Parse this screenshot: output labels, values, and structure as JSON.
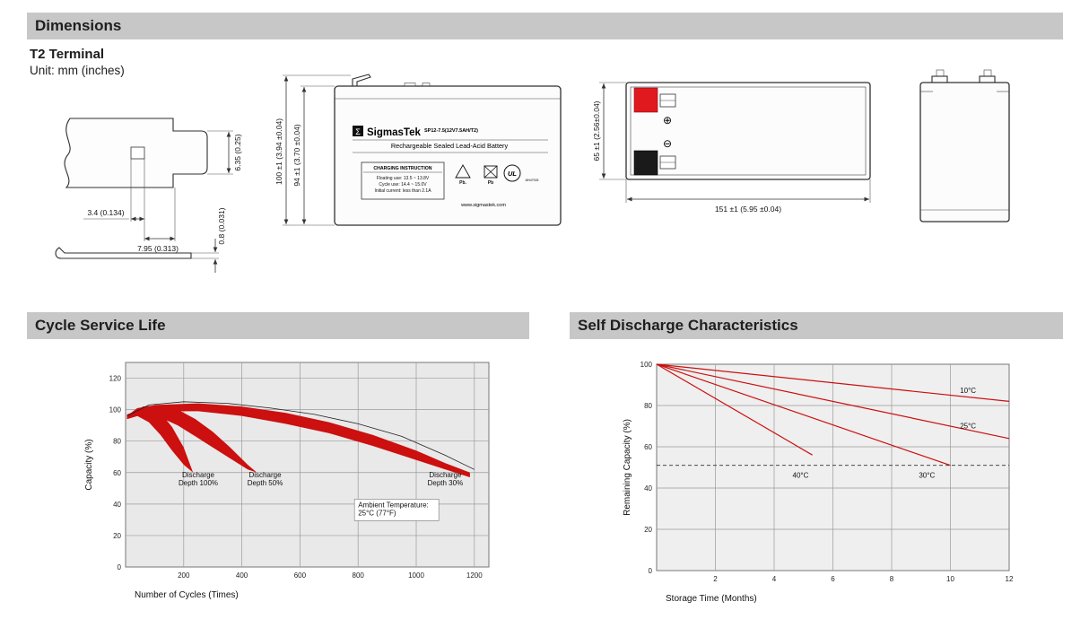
{
  "header": {
    "dimensions_title": "Dimensions"
  },
  "subhead": {
    "terminal_title": "T2 Terminal",
    "unit_label": "Unit: mm (inches)"
  },
  "terminal_drawing": {
    "dim_hole_width": "3.4 (0.134)",
    "dim_tab_offset": "7.95 (0.313)",
    "dim_blade_width": "6.35 (0.25)",
    "dim_thickness": "0.8 (0.031)"
  },
  "front_view": {
    "dim_outer": "100 ±1 (3.94 ±0.04)",
    "dim_inner": "94 ±1 (3.70 ±0.04)",
    "brand_sigma": "Σ",
    "brand": "SigmasTek",
    "model": "SP12-7.5(12V7.5AH/T2)",
    "battery_type": "Rechargeable Sealed Lead-Acid Battery",
    "charging_title": "CHARGING INSTRUCTION",
    "charging_floating": "Floating use: 13.5 ~ 13.8V",
    "charging_cycle": "Cycle use: 14.4 ~ 15.0V",
    "charging_initial": "Initial current: less than 2.1A",
    "pb_label_1": "Pb.",
    "pb_label_2": "Pb",
    "ul_label": "UL",
    "ul_code": "MH47925",
    "website": "www.sigmastek.com"
  },
  "side_view": {
    "dim_height": "65 ±1 (2.56±0.04)",
    "dim_length": "151 ±1 (5.95 ±0.04)",
    "positive_symbol": "⊕",
    "negative_symbol": "⊖"
  },
  "sections": {
    "cycle_title": "Cycle Service Life",
    "self_discharge_title": "Self Discharge Characteristics"
  },
  "chart_data": [
    {
      "id": "cycle-service-life",
      "type": "area",
      "title": "Cycle Service Life",
      "xlabel": "Number of Cycles (Times)",
      "ylabel": "Capacity (%)",
      "xlim": [
        0,
        1250
      ],
      "ylim": [
        0,
        130
      ],
      "xticks": [
        200,
        400,
        600,
        800,
        1000,
        1200
      ],
      "yticks": [
        0,
        20,
        40,
        60,
        80,
        100,
        120
      ],
      "grid": true,
      "legend_position": "none",
      "color": "#cc0f0f",
      "plot_bg": "#e9e9e9",
      "bands": [
        {
          "name": "Discharge Depth 100%",
          "upper": [
            [
              5,
              96
            ],
            [
              40,
              101
            ],
            [
              80,
              102
            ],
            [
              120,
              98
            ],
            [
              160,
              89
            ],
            [
              200,
              76
            ],
            [
              232,
              60
            ]
          ],
          "lower": [
            [
              5,
              94
            ],
            [
              40,
              96
            ],
            [
              80,
              92
            ],
            [
              120,
              84
            ],
            [
              160,
              74
            ],
            [
              200,
              65
            ],
            [
              232,
              60
            ]
          ]
        },
        {
          "name": "Discharge Depth 50%",
          "upper": [
            [
              5,
              96
            ],
            [
              60,
              102
            ],
            [
              120,
              103
            ],
            [
              180,
              100
            ],
            [
              240,
              94
            ],
            [
              300,
              86
            ],
            [
              360,
              76
            ],
            [
              420,
              65
            ],
            [
              452,
              60
            ]
          ],
          "lower": [
            [
              5,
              94
            ],
            [
              60,
              97
            ],
            [
              120,
              95
            ],
            [
              180,
              90
            ],
            [
              240,
              83
            ],
            [
              300,
              76
            ],
            [
              360,
              69
            ],
            [
              420,
              62
            ],
            [
              452,
              60
            ]
          ]
        },
        {
          "name": "Discharge Depth 30%",
          "upper": [
            [
              5,
              97
            ],
            [
              100,
              103
            ],
            [
              250,
              104
            ],
            [
              400,
              102
            ],
            [
              550,
              98
            ],
            [
              700,
              92
            ],
            [
              850,
              84
            ],
            [
              1000,
              74
            ],
            [
              1100,
              66
            ],
            [
              1185,
              60
            ]
          ],
          "lower": [
            [
              5,
              95
            ],
            [
              100,
              99
            ],
            [
              250,
              99
            ],
            [
              400,
              96
            ],
            [
              550,
              91
            ],
            [
              700,
              85
            ],
            [
              850,
              77
            ],
            [
              1000,
              68
            ],
            [
              1100,
              62
            ],
            [
              1185,
              57
            ]
          ]
        }
      ],
      "envelope": [
        [
          5,
          96
        ],
        [
          80,
          103
        ],
        [
          200,
          105
        ],
        [
          350,
          104
        ],
        [
          500,
          101
        ],
        [
          650,
          97
        ],
        [
          800,
          91
        ],
        [
          950,
          83
        ],
        [
          1100,
          71
        ],
        [
          1200,
          62
        ]
      ],
      "labels": [
        {
          "x": 250,
          "y": 57,
          "lines": [
            "Discharge",
            "Depth 100%"
          ]
        },
        {
          "x": 480,
          "y": 57,
          "lines": [
            "Discharge",
            "Depth 50%"
          ]
        },
        {
          "x": 1100,
          "y": 57,
          "lines": [
            "Discharge",
            "Depth 30%"
          ]
        },
        {
          "x": 800,
          "y": 38,
          "lines": [
            "Ambient Temperature:",
            "25°C (77°F)"
          ],
          "anchor": "start",
          "boxed": true
        }
      ]
    },
    {
      "id": "self-discharge",
      "type": "line",
      "title": "Self Discharge Characteristics",
      "xlabel": "Storage Time (Months)",
      "ylabel": "Remaining Capacity (%)",
      "xlim": [
        0,
        12
      ],
      "ylim": [
        0,
        100
      ],
      "xticks": [
        2,
        4,
        6,
        8,
        10,
        12
      ],
      "yticks": [
        0,
        20,
        40,
        60,
        80,
        100
      ],
      "grid": true,
      "legend_position": "inline-labels",
      "color": "#cc0f0f",
      "plot_bg": "#efefef",
      "lines": [
        {
          "name": "10°C",
          "points": [
            [
              0,
              100
            ],
            [
              12,
              82
            ]
          ]
        },
        {
          "name": "25°C",
          "points": [
            [
              0,
              100
            ],
            [
              12,
              64
            ]
          ]
        },
        {
          "name": "30°C",
          "points": [
            [
              0,
              100
            ],
            [
              10,
              51
            ]
          ]
        },
        {
          "name": "40°C",
          "points": [
            [
              0,
              100
            ],
            [
              5.3,
              56
            ]
          ]
        }
      ],
      "dashed_y": 51,
      "labels": [
        {
          "x": 10.6,
          "y": 86,
          "lines": [
            "10°C"
          ]
        },
        {
          "x": 10.6,
          "y": 69,
          "lines": [
            "25°C"
          ]
        },
        {
          "x": 9.2,
          "y": 45,
          "lines": [
            "30°C"
          ]
        },
        {
          "x": 4.9,
          "y": 45,
          "lines": [
            "40°C"
          ]
        }
      ]
    }
  ]
}
